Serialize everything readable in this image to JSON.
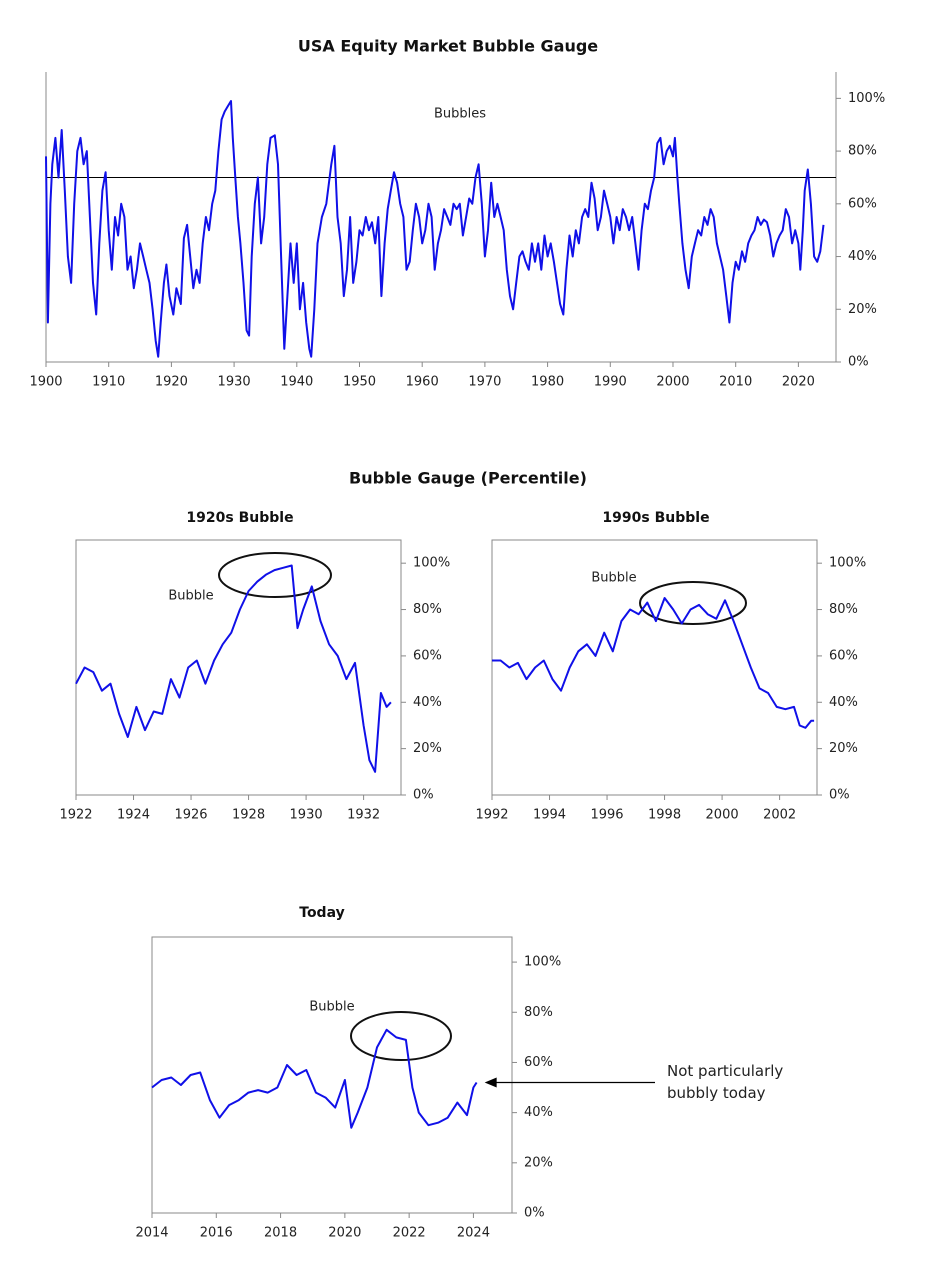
{
  "heading": "Bubble Gauge (Percentile)",
  "chart_data": [
    {
      "type": "line",
      "title": "USA Equity Market Bubble Gauge",
      "annotation": "Bubbles",
      "threshold": 70,
      "color": "#1010e8",
      "xlim": [
        1900,
        2026
      ],
      "ylim": [
        0,
        110
      ],
      "xticks": [
        1900,
        1910,
        1920,
        1930,
        1940,
        1950,
        1960,
        1970,
        1980,
        1990,
        2000,
        2010,
        2020
      ],
      "yticks": [
        {
          "value": 0,
          "label": "0%"
        },
        {
          "value": 20,
          "label": "20%"
        },
        {
          "value": 40,
          "label": "40%"
        },
        {
          "value": 60,
          "label": "60%"
        },
        {
          "value": 80,
          "label": "80%"
        },
        {
          "value": 100,
          "label": "100%"
        }
      ],
      "x": [
        1900,
        1900.3,
        1900.7,
        1901,
        1901.5,
        1902,
        1902.5,
        1903,
        1903.5,
        1904,
        1904.5,
        1905,
        1905.5,
        1906,
        1906.5,
        1907,
        1907.5,
        1908,
        1908.5,
        1909,
        1909.5,
        1910,
        1910.5,
        1911,
        1911.5,
        1912,
        1912.5,
        1913,
        1913.5,
        1914,
        1914.5,
        1915,
        1915.5,
        1916,
        1916.5,
        1917,
        1917.5,
        1917.9,
        1918.3,
        1918.8,
        1919.2,
        1919.7,
        1920.3,
        1920.8,
        1921.5,
        1922,
        1922.5,
        1923,
        1923.5,
        1924,
        1924.5,
        1925,
        1925.5,
        1926,
        1926.5,
        1927,
        1927.5,
        1928,
        1928.5,
        1929,
        1929.5,
        1929.8,
        1930.2,
        1930.6,
        1931,
        1931.5,
        1932,
        1932.4,
        1932.8,
        1933.3,
        1933.8,
        1934.3,
        1934.8,
        1935.3,
        1935.8,
        1936.5,
        1937,
        1937.5,
        1938,
        1938.5,
        1939,
        1939.5,
        1940,
        1940.5,
        1941,
        1941.5,
        1942,
        1942.3,
        1942.8,
        1943.3,
        1944,
        1944.7,
        1945.5,
        1946,
        1946.5,
        1947,
        1947.5,
        1948,
        1948.5,
        1949,
        1949.5,
        1950,
        1950.5,
        1951,
        1951.5,
        1952,
        1952.5,
        1953,
        1953.5,
        1954,
        1954.5,
        1955,
        1955.5,
        1956,
        1956.5,
        1957,
        1957.5,
        1958,
        1958.5,
        1959,
        1959.5,
        1960,
        1960.5,
        1961,
        1961.5,
        1962,
        1962.5,
        1963,
        1963.5,
        1964,
        1964.5,
        1965,
        1965.5,
        1966,
        1966.5,
        1967,
        1967.5,
        1968,
        1968.5,
        1969,
        1969.5,
        1970,
        1970.5,
        1971,
        1971.5,
        1972,
        1972.5,
        1973,
        1973.5,
        1974,
        1974.5,
        1975,
        1975.5,
        1976,
        1976.5,
        1977,
        1977.5,
        1978,
        1978.5,
        1979,
        1979.5,
        1980,
        1980.5,
        1981,
        1981.5,
        1982,
        1982.5,
        1983,
        1983.5,
        1984,
        1984.5,
        1985,
        1985.5,
        1986,
        1986.5,
        1987,
        1987.5,
        1988,
        1988.5,
        1989,
        1989.5,
        1990,
        1990.5,
        1991,
        1991.5,
        1992,
        1992.5,
        1993,
        1993.5,
        1994,
        1994.5,
        1995,
        1995.5,
        1996,
        1996.5,
        1997,
        1997.5,
        1998,
        1998.5,
        1999,
        1999.5,
        2000,
        2000.3,
        2000.7,
        2001,
        2001.5,
        2002,
        2002.5,
        2003,
        2003.5,
        2004,
        2004.5,
        2005,
        2005.5,
        2006,
        2006.5,
        2007,
        2007.5,
        2008,
        2008.5,
        2009,
        2009.5,
        2010,
        2010.5,
        2011,
        2011.5,
        2012,
        2012.5,
        2013,
        2013.5,
        2014,
        2014.5,
        2015,
        2015.5,
        2016,
        2016.5,
        2017,
        2017.5,
        2018,
        2018.5,
        2019,
        2019.5,
        2020,
        2020.3,
        2020.7,
        2021,
        2021.5,
        2022,
        2022.5,
        2023,
        2023.5,
        2024
      ],
      "values": [
        78,
        15,
        60,
        75,
        85,
        70,
        88,
        65,
        40,
        30,
        60,
        80,
        85,
        75,
        80,
        55,
        30,
        18,
        45,
        65,
        72,
        50,
        35,
        55,
        48,
        60,
        55,
        35,
        40,
        28,
        35,
        45,
        40,
        35,
        30,
        20,
        8,
        2,
        15,
        30,
        37,
        25,
        18,
        28,
        22,
        47,
        52,
        40,
        28,
        35,
        30,
        45,
        55,
        50,
        60,
        65,
        80,
        92,
        95,
        97,
        99,
        85,
        70,
        55,
        45,
        30,
        12,
        10,
        40,
        60,
        70,
        45,
        55,
        75,
        85,
        86,
        75,
        40,
        5,
        25,
        45,
        30,
        45,
        20,
        30,
        15,
        5,
        2,
        20,
        45,
        55,
        60,
        75,
        82,
        55,
        45,
        25,
        35,
        55,
        30,
        38,
        50,
        48,
        55,
        50,
        53,
        45,
        55,
        25,
        45,
        58,
        65,
        72,
        68,
        60,
        55,
        35,
        38,
        50,
        60,
        55,
        45,
        50,
        60,
        55,
        35,
        45,
        50,
        58,
        55,
        52,
        60,
        58,
        60,
        48,
        55,
        62,
        60,
        70,
        75,
        60,
        40,
        50,
        68,
        55,
        60,
        55,
        50,
        35,
        25,
        20,
        30,
        40,
        42,
        38,
        35,
        45,
        38,
        45,
        35,
        48,
        40,
        45,
        38,
        30,
        22,
        18,
        35,
        48,
        40,
        50,
        45,
        55,
        58,
        55,
        68,
        62,
        50,
        55,
        65,
        60,
        55,
        45,
        55,
        50,
        58,
        55,
        50,
        55,
        45,
        35,
        50,
        60,
        58,
        65,
        70,
        83,
        85,
        75,
        80,
        82,
        78,
        85,
        70,
        60,
        45,
        35,
        28,
        40,
        45,
        50,
        48,
        55,
        52,
        58,
        55,
        45,
        40,
        35,
        25,
        15,
        30,
        38,
        35,
        42,
        38,
        45,
        48,
        50,
        55,
        52,
        54,
        53,
        48,
        40,
        45,
        48,
        50,
        58,
        55,
        45,
        50,
        45,
        35,
        50,
        65,
        73,
        60,
        40,
        38,
        42,
        52
      ]
    },
    {
      "type": "line",
      "title": "1920s Bubble",
      "annotation": "Bubble",
      "color": "#1010e8",
      "xlim": [
        1922,
        1933.3
      ],
      "ylim": [
        0,
        110
      ],
      "xticks": [
        1922,
        1924,
        1926,
        1928,
        1930,
        1932
      ],
      "yticks": [
        {
          "value": 0,
          "label": "0%"
        },
        {
          "value": 20,
          "label": "20%"
        },
        {
          "value": 40,
          "label": "40%"
        },
        {
          "value": 60,
          "label": "60%"
        },
        {
          "value": 80,
          "label": "80%"
        },
        {
          "value": 100,
          "label": "100%"
        }
      ],
      "x": [
        1922,
        1922.3,
        1922.6,
        1922.9,
        1923.2,
        1923.5,
        1923.8,
        1924.1,
        1924.4,
        1924.7,
        1925,
        1925.3,
        1925.6,
        1925.9,
        1926.2,
        1926.5,
        1926.8,
        1927.1,
        1927.4,
        1927.7,
        1928,
        1928.3,
        1928.6,
        1928.9,
        1929.2,
        1929.5,
        1929.7,
        1929.9,
        1930.2,
        1930.5,
        1930.8,
        1931.1,
        1931.4,
        1931.7,
        1932,
        1932.2,
        1932.4,
        1932.6,
        1932.8,
        1932.95
      ],
      "values": [
        48,
        55,
        53,
        45,
        48,
        35,
        25,
        38,
        28,
        36,
        35,
        50,
        42,
        55,
        58,
        48,
        58,
        65,
        70,
        80,
        88,
        92,
        95,
        97,
        98,
        99,
        72,
        80,
        90,
        75,
        65,
        60,
        50,
        57,
        30,
        15,
        10,
        44,
        38,
        40
      ]
    },
    {
      "type": "line",
      "title": "1990s Bubble",
      "annotation": "Bubble",
      "color": "#1010e8",
      "xlim": [
        1992,
        2003.3
      ],
      "ylim": [
        0,
        110
      ],
      "xticks": [
        1992,
        1994,
        1996,
        1998,
        2000,
        2002
      ],
      "yticks": [
        {
          "value": 0,
          "label": "0%"
        },
        {
          "value": 20,
          "label": "20%"
        },
        {
          "value": 40,
          "label": "40%"
        },
        {
          "value": 60,
          "label": "60%"
        },
        {
          "value": 80,
          "label": "80%"
        },
        {
          "value": 100,
          "label": "100%"
        }
      ],
      "x": [
        1992,
        1992.3,
        1992.6,
        1992.9,
        1993.2,
        1993.5,
        1993.8,
        1994.1,
        1994.4,
        1994.7,
        1995,
        1995.3,
        1995.6,
        1995.9,
        1996.2,
        1996.5,
        1996.8,
        1997.1,
        1997.4,
        1997.7,
        1998,
        1998.3,
        1998.6,
        1998.9,
        1999.2,
        1999.5,
        1999.8,
        2000.1,
        2000.4,
        2000.7,
        2001,
        2001.3,
        2001.6,
        2001.9,
        2002.2,
        2002.5,
        2002.7,
        2002.9,
        2003.1,
        2003.2
      ],
      "values": [
        58,
        58,
        55,
        57,
        50,
        55,
        58,
        50,
        45,
        55,
        62,
        65,
        60,
        70,
        62,
        75,
        80,
        78,
        83,
        75,
        85,
        80,
        74,
        80,
        82,
        78,
        76,
        84,
        75,
        65,
        55,
        46,
        44,
        38,
        37,
        38,
        30,
        29,
        32,
        32
      ]
    },
    {
      "type": "line",
      "title": "Today",
      "annotation": "Bubble",
      "callout": "Not particularly bubbly today",
      "color": "#1010e8",
      "xlim": [
        2014,
        2025.2
      ],
      "ylim": [
        0,
        110
      ],
      "xticks": [
        2014,
        2016,
        2018,
        2020,
        2022,
        2024
      ],
      "yticks": [
        {
          "value": 0,
          "label": "0%"
        },
        {
          "value": 20,
          "label": "20%"
        },
        {
          "value": 40,
          "label": "40%"
        },
        {
          "value": 60,
          "label": "60%"
        },
        {
          "value": 80,
          "label": "80%"
        },
        {
          "value": 100,
          "label": "100%"
        }
      ],
      "x": [
        2014,
        2014.3,
        2014.6,
        2014.9,
        2015.2,
        2015.5,
        2015.8,
        2016.1,
        2016.4,
        2016.7,
        2017,
        2017.3,
        2017.6,
        2017.9,
        2018.2,
        2018.5,
        2018.8,
        2019.1,
        2019.4,
        2019.7,
        2020,
        2020.2,
        2020.4,
        2020.7,
        2021,
        2021.3,
        2021.6,
        2021.9,
        2022.1,
        2022.3,
        2022.6,
        2022.9,
        2023.2,
        2023.5,
        2023.8,
        2024,
        2024.1
      ],
      "values": [
        50,
        53,
        54,
        51,
        55,
        56,
        45,
        38,
        43,
        45,
        48,
        49,
        48,
        50,
        59,
        55,
        57,
        48,
        46,
        42,
        53,
        34,
        40,
        50,
        66,
        73,
        70,
        69,
        50,
        40,
        35,
        36,
        38,
        44,
        39,
        50,
        52
      ]
    }
  ]
}
